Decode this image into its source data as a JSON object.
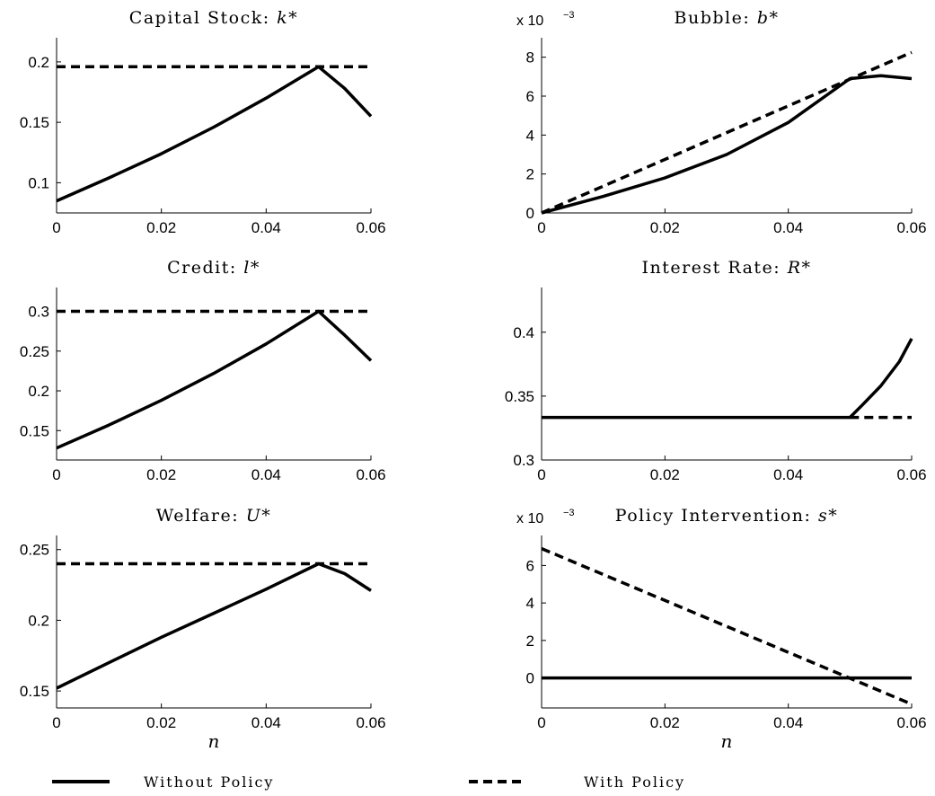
{
  "chart_data": [
    {
      "type": "line",
      "title": "Capital Stock:",
      "title_var": "k*",
      "xlim": [
        0,
        0.06
      ],
      "ylim": [
        0.075,
        0.22
      ],
      "xticks": [
        0,
        0.02,
        0.04,
        0.06
      ],
      "xtick_labels": [
        "0",
        "0.02",
        "0.04",
        "0.06"
      ],
      "yticks": [
        0.1,
        0.15,
        0.2
      ],
      "ytick_labels": [
        "0.1",
        "0.15",
        "0.2"
      ],
      "xlabel": "",
      "series": [
        {
          "name": "Without Policy",
          "style": "solid",
          "x": [
            0,
            0.01,
            0.02,
            0.03,
            0.04,
            0.05,
            0.055,
            0.06
          ],
          "y": [
            0.085,
            0.104,
            0.124,
            0.146,
            0.17,
            0.196,
            0.178,
            0.155
          ]
        },
        {
          "name": "With Policy",
          "style": "dashed",
          "x": [
            0,
            0.06
          ],
          "y": [
            0.196,
            0.196
          ]
        }
      ]
    },
    {
      "type": "line",
      "title": "Bubble:",
      "title_var": "b*",
      "multiplier": "x 10",
      "multiplier_exp": "−3",
      "xlim": [
        0,
        0.06
      ],
      "ylim": [
        0,
        9
      ],
      "xticks": [
        0,
        0.02,
        0.04,
        0.06
      ],
      "xtick_labels": [
        "0",
        "0.02",
        "0.04",
        "0.06"
      ],
      "yticks": [
        0,
        2,
        4,
        6,
        8
      ],
      "ytick_labels": [
        "0",
        "2",
        "4",
        "6",
        "8"
      ],
      "xlabel": "",
      "series": [
        {
          "name": "Without Policy",
          "style": "solid",
          "x": [
            0,
            0.01,
            0.02,
            0.03,
            0.04,
            0.05,
            0.055,
            0.06
          ],
          "y": [
            0,
            0.85,
            1.8,
            3.0,
            4.65,
            6.9,
            7.05,
            6.9
          ]
        },
        {
          "name": "With Policy",
          "style": "dashed",
          "x": [
            0,
            0.06
          ],
          "y": [
            0,
            8.25
          ]
        }
      ]
    },
    {
      "type": "line",
      "title": "Credit:",
      "title_var": "l*",
      "xlim": [
        0,
        0.06
      ],
      "ylim": [
        0.113,
        0.33
      ],
      "xticks": [
        0,
        0.02,
        0.04,
        0.06
      ],
      "xtick_labels": [
        "0",
        "0.02",
        "0.04",
        "0.06"
      ],
      "yticks": [
        0.15,
        0.2,
        0.25,
        0.3
      ],
      "ytick_labels": [
        "0.15",
        "0.2",
        "0.25",
        "0.3"
      ],
      "xlabel": "",
      "series": [
        {
          "name": "Without Policy",
          "style": "solid",
          "x": [
            0,
            0.01,
            0.02,
            0.03,
            0.04,
            0.05,
            0.055,
            0.06
          ],
          "y": [
            0.128,
            0.157,
            0.188,
            0.222,
            0.259,
            0.3,
            0.27,
            0.238
          ]
        },
        {
          "name": "With Policy",
          "style": "dashed",
          "x": [
            0,
            0.06
          ],
          "y": [
            0.3,
            0.3
          ]
        }
      ]
    },
    {
      "type": "line",
      "title": "Interest Rate:",
      "title_var": "R*",
      "xlim": [
        0,
        0.06
      ],
      "ylim": [
        0.3,
        0.435
      ],
      "xticks": [
        0,
        0.02,
        0.04,
        0.06
      ],
      "xtick_labels": [
        "0",
        "0.02",
        "0.04",
        "0.06"
      ],
      "yticks": [
        0.3,
        0.35,
        0.4
      ],
      "ytick_labels": [
        "0.3",
        "0.35",
        "0.4"
      ],
      "xlabel": "",
      "series": [
        {
          "name": "Without Policy",
          "style": "solid",
          "x": [
            0,
            0.05,
            0.052,
            0.055,
            0.058,
            0.06
          ],
          "y": [
            0.3333,
            0.3333,
            0.343,
            0.358,
            0.377,
            0.395
          ]
        },
        {
          "name": "With Policy",
          "style": "dashed",
          "x": [
            0.05,
            0.06
          ],
          "y": [
            0.3333,
            0.3333
          ]
        }
      ]
    },
    {
      "type": "line",
      "title": "Welfare:",
      "title_var": "U*",
      "xlim": [
        0,
        0.06
      ],
      "ylim": [
        0.138,
        0.26
      ],
      "xticks": [
        0,
        0.02,
        0.04,
        0.06
      ],
      "xtick_labels": [
        "0",
        "0.02",
        "0.04",
        "0.06"
      ],
      "yticks": [
        0.15,
        0.2,
        0.25
      ],
      "ytick_labels": [
        "0.15",
        "0.2",
        "0.25"
      ],
      "xlabel": "n",
      "series": [
        {
          "name": "Without Policy",
          "style": "solid",
          "x": [
            0,
            0.01,
            0.02,
            0.03,
            0.04,
            0.05,
            0.055,
            0.06
          ],
          "y": [
            0.152,
            0.17,
            0.188,
            0.205,
            0.222,
            0.24,
            0.233,
            0.221
          ]
        },
        {
          "name": "With Policy",
          "style": "dashed",
          "x": [
            0,
            0.06
          ],
          "y": [
            0.24,
            0.24
          ]
        }
      ]
    },
    {
      "type": "line",
      "title": "Policy Intervention:",
      "title_var": "s*",
      "multiplier": "x 10",
      "multiplier_exp": "−3",
      "xlim": [
        0,
        0.06
      ],
      "ylim": [
        -1.6,
        7.6
      ],
      "xticks": [
        0,
        0.02,
        0.04,
        0.06
      ],
      "xtick_labels": [
        "0",
        "0.02",
        "0.04",
        "0.06"
      ],
      "yticks": [
        0,
        2,
        4,
        6
      ],
      "ytick_labels": [
        "0",
        "2",
        "4",
        "6"
      ],
      "xlabel": "n",
      "series": [
        {
          "name": "Without Policy",
          "style": "solid",
          "x": [
            0,
            0.06
          ],
          "y": [
            0,
            0
          ]
        },
        {
          "name": "With Policy",
          "style": "dashed",
          "x": [
            0,
            0.06
          ],
          "y": [
            6.9,
            -1.4
          ]
        }
      ]
    }
  ],
  "legend": {
    "without_policy": "Without Policy",
    "with_policy": "With Policy"
  }
}
